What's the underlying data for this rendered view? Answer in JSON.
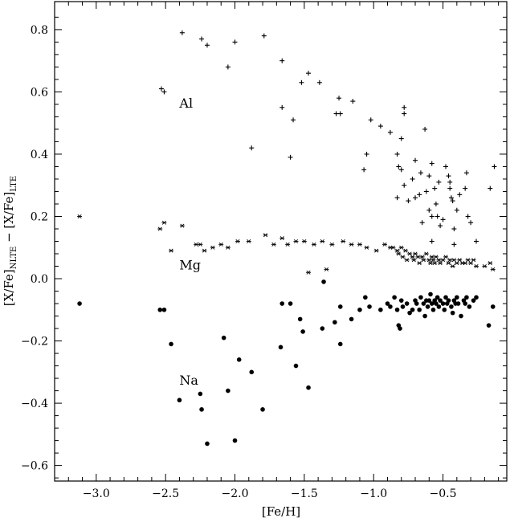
{
  "chart_data": {
    "type": "scatter",
    "xlabel": "[Fe/H]",
    "ylabel": "[X/Fe]NLTE − [X/Fe]LTE",
    "xlim": [
      -3.3,
      -0.04
    ],
    "ylim": [
      -0.65,
      0.89
    ],
    "x_ticks": [
      -3.0,
      -2.5,
      -2.0,
      -1.5,
      -1.0,
      -0.5
    ],
    "x_tick_labels": [
      "−3.0",
      "−2.5",
      "−2.0",
      "−1.5",
      "−1.0",
      "−0.5"
    ],
    "y_ticks": [
      -0.6,
      -0.4,
      -0.2,
      0.0,
      0.2,
      0.4,
      0.6,
      0.8
    ],
    "y_tick_labels": [
      "−0.6",
      "−0.4",
      "−0.2",
      "0.0",
      "0.2",
      "0.4",
      "0.6",
      "0.8"
    ],
    "grid": false,
    "legend": "none",
    "annotations": [
      {
        "text": "Al",
        "x": -2.4,
        "y": 0.55
      },
      {
        "text": "Mg",
        "x": -2.4,
        "y": 0.03
      },
      {
        "text": "Na",
        "x": -2.4,
        "y": -0.34
      }
    ],
    "series": [
      {
        "marker": "plus",
        "points": [
          [
            -2.53,
            0.61
          ],
          [
            -2.51,
            0.6
          ],
          [
            -2.38,
            0.79
          ],
          [
            -2.24,
            0.77
          ],
          [
            -2.2,
            0.75
          ],
          [
            -2.0,
            0.76
          ],
          [
            -2.05,
            0.68
          ],
          [
            -1.79,
            0.78
          ],
          [
            -1.66,
            0.7
          ],
          [
            -1.66,
            0.55
          ],
          [
            -1.58,
            0.51
          ],
          [
            -1.6,
            0.39
          ],
          [
            -1.88,
            0.42
          ],
          [
            -1.47,
            0.66
          ],
          [
            -1.52,
            0.63
          ],
          [
            -1.39,
            0.63
          ],
          [
            -1.27,
            0.53
          ],
          [
            -1.24,
            0.53
          ],
          [
            -1.25,
            0.58
          ],
          [
            -1.15,
            0.57
          ],
          [
            -1.02,
            0.51
          ],
          [
            -0.95,
            0.49
          ],
          [
            -1.05,
            0.4
          ],
          [
            -1.07,
            0.35
          ],
          [
            -0.88,
            0.47
          ],
          [
            -0.8,
            0.45
          ],
          [
            -0.78,
            0.55
          ],
          [
            -0.78,
            0.53
          ],
          [
            -0.83,
            0.4
          ],
          [
            -0.82,
            0.36
          ],
          [
            -0.83,
            0.26
          ],
          [
            -0.8,
            0.35
          ],
          [
            -0.78,
            0.3
          ],
          [
            -0.75,
            0.25
          ],
          [
            -0.72,
            0.32
          ],
          [
            -0.7,
            0.26
          ],
          [
            -0.7,
            0.38
          ],
          [
            -0.67,
            0.27
          ],
          [
            -0.66,
            0.34
          ],
          [
            -0.65,
            0.18
          ],
          [
            -0.63,
            0.48
          ],
          [
            -0.62,
            0.28
          ],
          [
            -0.6,
            0.22
          ],
          [
            -0.6,
            0.33
          ],
          [
            -0.58,
            0.37
          ],
          [
            -0.58,
            0.2
          ],
          [
            -0.58,
            0.12
          ],
          [
            -0.56,
            0.29
          ],
          [
            -0.55,
            0.24
          ],
          [
            -0.54,
            0.2
          ],
          [
            -0.53,
            0.31
          ],
          [
            -0.52,
            0.17
          ],
          [
            -0.5,
            0.19
          ],
          [
            -0.48,
            0.36
          ],
          [
            -0.46,
            0.33
          ],
          [
            -0.45,
            0.31
          ],
          [
            -0.45,
            0.29
          ],
          [
            -0.44,
            0.26
          ],
          [
            -0.43,
            0.25
          ],
          [
            -0.42,
            0.16
          ],
          [
            -0.42,
            0.11
          ],
          [
            -0.4,
            0.22
          ],
          [
            -0.38,
            0.27
          ],
          [
            -0.34,
            0.29
          ],
          [
            -0.33,
            0.34
          ],
          [
            -0.32,
            0.2
          ],
          [
            -0.3,
            0.18
          ],
          [
            -0.26,
            0.12
          ],
          [
            -0.16,
            0.29
          ],
          [
            -0.13,
            0.36
          ]
        ]
      },
      {
        "marker": "asterisk",
        "points": [
          [
            -3.12,
            0.2
          ],
          [
            -2.54,
            0.16
          ],
          [
            -2.51,
            0.18
          ],
          [
            -2.46,
            0.09
          ],
          [
            -2.38,
            0.17
          ],
          [
            -2.28,
            0.11
          ],
          [
            -2.25,
            0.11
          ],
          [
            -2.22,
            0.09
          ],
          [
            -2.16,
            0.1
          ],
          [
            -2.1,
            0.11
          ],
          [
            -2.05,
            0.1
          ],
          [
            -1.98,
            0.12
          ],
          [
            -1.9,
            0.12
          ],
          [
            -1.78,
            0.14
          ],
          [
            -1.72,
            0.11
          ],
          [
            -1.66,
            0.13
          ],
          [
            -1.62,
            0.11
          ],
          [
            -1.56,
            0.12
          ],
          [
            -1.5,
            0.12
          ],
          [
            -1.47,
            0.02
          ],
          [
            -1.43,
            0.11
          ],
          [
            -1.37,
            0.12
          ],
          [
            -1.34,
            0.03
          ],
          [
            -1.3,
            0.11
          ],
          [
            -1.22,
            0.12
          ],
          [
            -1.16,
            0.11
          ],
          [
            -1.1,
            0.11
          ],
          [
            -1.05,
            0.1
          ],
          [
            -0.98,
            0.09
          ],
          [
            -0.92,
            0.11
          ],
          [
            -0.88,
            0.1
          ],
          [
            -0.86,
            0.1
          ],
          [
            -0.83,
            0.09
          ],
          [
            -0.82,
            0.08
          ],
          [
            -0.8,
            0.1
          ],
          [
            -0.79,
            0.07
          ],
          [
            -0.77,
            0.09
          ],
          [
            -0.76,
            0.06
          ],
          [
            -0.74,
            0.08
          ],
          [
            -0.72,
            0.07
          ],
          [
            -0.71,
            0.06
          ],
          [
            -0.7,
            0.08
          ],
          [
            -0.68,
            0.07
          ],
          [
            -0.67,
            0.05
          ],
          [
            -0.65,
            0.07
          ],
          [
            -0.64,
            0.06
          ],
          [
            -0.62,
            0.08
          ],
          [
            -0.6,
            0.06
          ],
          [
            -0.59,
            0.05
          ],
          [
            -0.58,
            0.07
          ],
          [
            -0.57,
            0.06
          ],
          [
            -0.56,
            0.05
          ],
          [
            -0.55,
            0.07
          ],
          [
            -0.53,
            0.06
          ],
          [
            -0.52,
            0.05
          ],
          [
            -0.5,
            0.06
          ],
          [
            -0.48,
            0.07
          ],
          [
            -0.46,
            0.05
          ],
          [
            -0.45,
            0.06
          ],
          [
            -0.43,
            0.04
          ],
          [
            -0.42,
            0.06
          ],
          [
            -0.4,
            0.05
          ],
          [
            -0.38,
            0.06
          ],
          [
            -0.36,
            0.05
          ],
          [
            -0.34,
            0.05
          ],
          [
            -0.32,
            0.06
          ],
          [
            -0.3,
            0.05
          ],
          [
            -0.28,
            0.06
          ],
          [
            -0.26,
            0.04
          ],
          [
            -0.2,
            0.04
          ],
          [
            -0.16,
            0.05
          ],
          [
            -0.14,
            0.03
          ]
        ]
      },
      {
        "marker": "dot",
        "points": [
          [
            -3.12,
            -0.08
          ],
          [
            -2.54,
            -0.1
          ],
          [
            -2.51,
            -0.1
          ],
          [
            -2.46,
            -0.21
          ],
          [
            -2.4,
            -0.39
          ],
          [
            -2.25,
            -0.37
          ],
          [
            -2.24,
            -0.42
          ],
          [
            -2.2,
            -0.53
          ],
          [
            -2.08,
            -0.19
          ],
          [
            -2.05,
            -0.36
          ],
          [
            -2.0,
            -0.52
          ],
          [
            -1.97,
            -0.26
          ],
          [
            -1.88,
            -0.3
          ],
          [
            -1.8,
            -0.42
          ],
          [
            -1.67,
            -0.22
          ],
          [
            -1.66,
            -0.08
          ],
          [
            -1.6,
            -0.08
          ],
          [
            -1.56,
            -0.28
          ],
          [
            -1.53,
            -0.13
          ],
          [
            -1.51,
            -0.17
          ],
          [
            -1.47,
            -0.35
          ],
          [
            -1.36,
            -0.01
          ],
          [
            -1.37,
            -0.16
          ],
          [
            -1.28,
            -0.14
          ],
          [
            -1.24,
            -0.21
          ],
          [
            -1.24,
            -0.09
          ],
          [
            -1.16,
            -0.13
          ],
          [
            -1.1,
            -0.1
          ],
          [
            -1.06,
            -0.06
          ],
          [
            -1.03,
            -0.09
          ],
          [
            -0.95,
            -0.1
          ],
          [
            -0.9,
            -0.08
          ],
          [
            -0.88,
            -0.09
          ],
          [
            -0.85,
            -0.06
          ],
          [
            -0.83,
            -0.1
          ],
          [
            -0.82,
            -0.15
          ],
          [
            -0.81,
            -0.16
          ],
          [
            -0.8,
            -0.07
          ],
          [
            -0.79,
            -0.09
          ],
          [
            -0.76,
            -0.08
          ],
          [
            -0.74,
            -0.11
          ],
          [
            -0.72,
            -0.1
          ],
          [
            -0.7,
            -0.07
          ],
          [
            -0.69,
            -0.08
          ],
          [
            -0.67,
            -0.1
          ],
          [
            -0.66,
            -0.06
          ],
          [
            -0.64,
            -0.08
          ],
          [
            -0.63,
            -0.12
          ],
          [
            -0.62,
            -0.07
          ],
          [
            -0.61,
            -0.09
          ],
          [
            -0.6,
            -0.07
          ],
          [
            -0.59,
            -0.05
          ],
          [
            -0.58,
            -0.08
          ],
          [
            -0.57,
            -0.1
          ],
          [
            -0.56,
            -0.07
          ],
          [
            -0.55,
            -0.08
          ],
          [
            -0.54,
            -0.06
          ],
          [
            -0.53,
            -0.09
          ],
          [
            -0.52,
            -0.07
          ],
          [
            -0.5,
            -0.08
          ],
          [
            -0.49,
            -0.1
          ],
          [
            -0.48,
            -0.06
          ],
          [
            -0.47,
            -0.08
          ],
          [
            -0.46,
            -0.07
          ],
          [
            -0.44,
            -0.09
          ],
          [
            -0.43,
            -0.11
          ],
          [
            -0.42,
            -0.07
          ],
          [
            -0.41,
            -0.08
          ],
          [
            -0.4,
            -0.06
          ],
          [
            -0.39,
            -0.08
          ],
          [
            -0.37,
            -0.12
          ],
          [
            -0.35,
            -0.07
          ],
          [
            -0.34,
            -0.08
          ],
          [
            -0.33,
            -0.06
          ],
          [
            -0.31,
            -0.09
          ],
          [
            -0.28,
            -0.07
          ],
          [
            -0.26,
            -0.06
          ],
          [
            -0.17,
            -0.15
          ],
          [
            -0.14,
            -0.09
          ]
        ]
      }
    ]
  }
}
